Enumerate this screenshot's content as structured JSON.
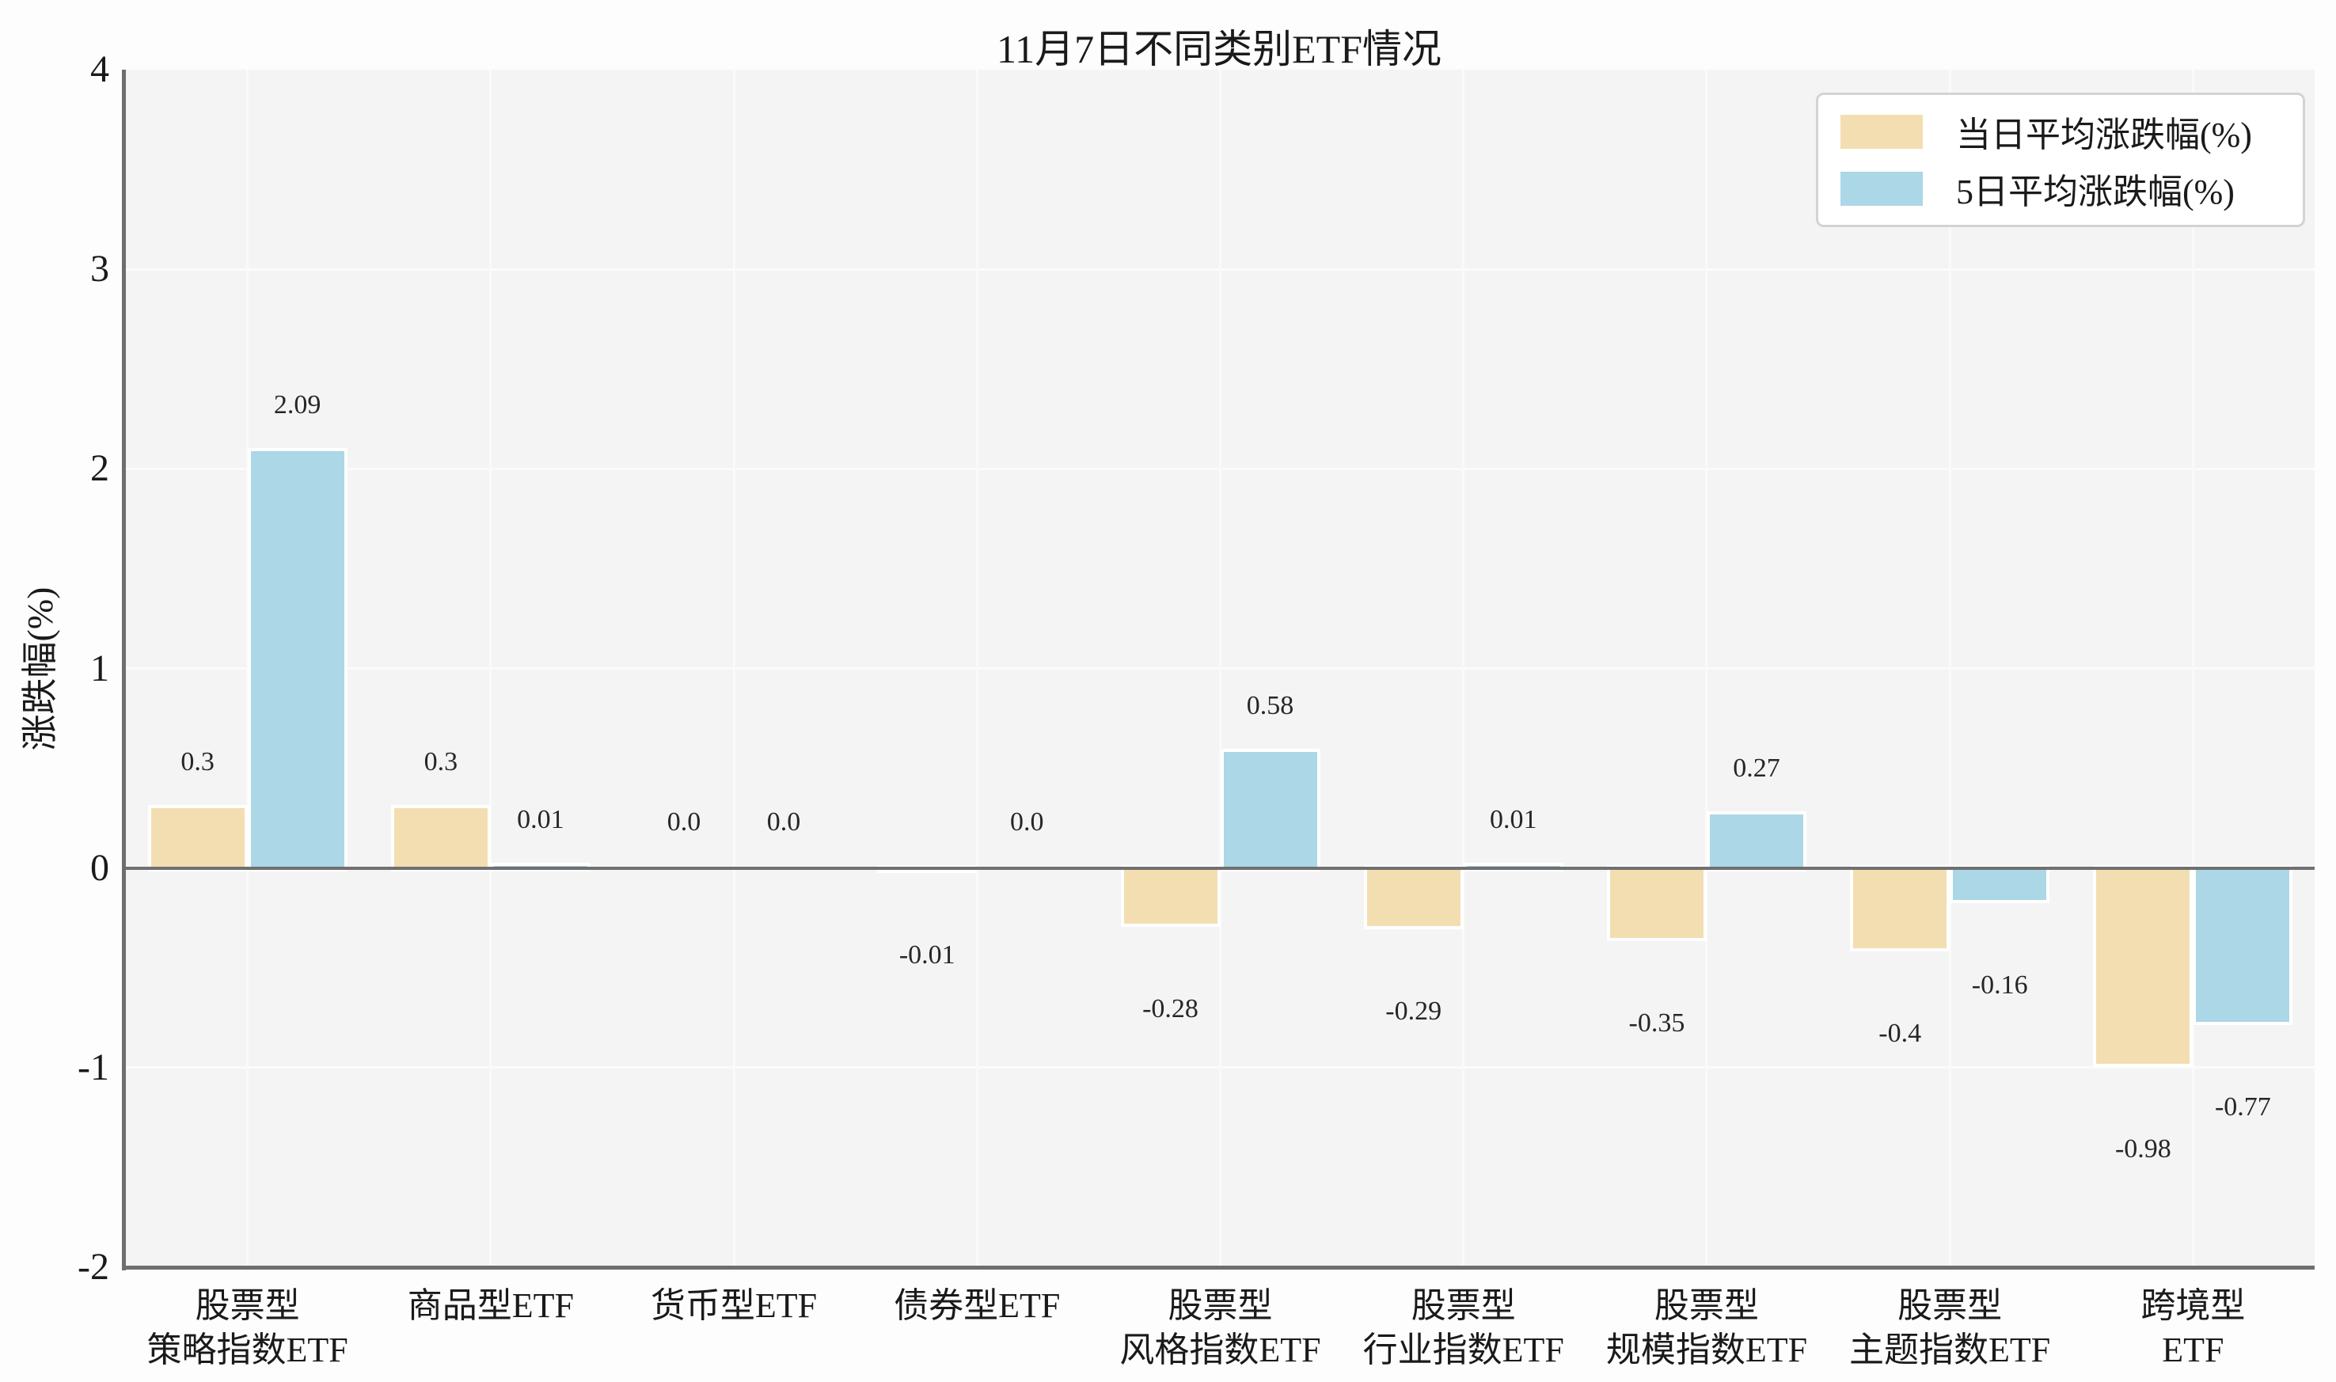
{
  "figure": {
    "background": "#fdfdfd",
    "plot_background": "#f4f4f4",
    "grid_color": "#fbfbfb",
    "axis_color": "#6e6e6e",
    "zero_line_color": "#707070"
  },
  "chart_data": {
    "type": "bar",
    "title": "11月7日不同类别ETF情况",
    "xlabel": "",
    "ylabel": "涨跌幅(%)",
    "ylim": [
      -2,
      4
    ],
    "yticks": [
      4,
      3,
      2,
      1,
      0,
      -1,
      -2
    ],
    "grid": true,
    "legend_position": "upper right",
    "categories": [
      "股票型\n策略指数ETF",
      "商品型ETF",
      "货币型ETF",
      "债券型ETF",
      "股票型\n风格指数ETF",
      "股票型\n行业指数ETF",
      "股票型\n规模指数ETF",
      "股票型\n主题指数ETF",
      "跨境型ETF"
    ],
    "series": [
      {
        "name": "当日平均涨跌幅(%)",
        "color": "#f3deb1",
        "values": [
          0.3,
          0.3,
          0.0,
          -0.01,
          -0.28,
          -0.29,
          -0.35,
          -0.4,
          -0.98
        ],
        "labels": [
          "0.3",
          "0.3",
          "0.0",
          "-0.01",
          "-0.28",
          "-0.29",
          "-0.35",
          "-0.4",
          "-0.98"
        ]
      },
      {
        "name": "5日平均涨跌幅(%)",
        "color": "#abd7e6",
        "values": [
          2.09,
          0.01,
          0.0,
          0.0,
          0.58,
          0.01,
          0.27,
          -0.16,
          -0.77
        ],
        "labels": [
          "2.09",
          "0.01",
          "0.0",
          "0.0",
          "0.58",
          "0.01",
          "0.27",
          "-0.16",
          "-0.77"
        ]
      }
    ]
  }
}
